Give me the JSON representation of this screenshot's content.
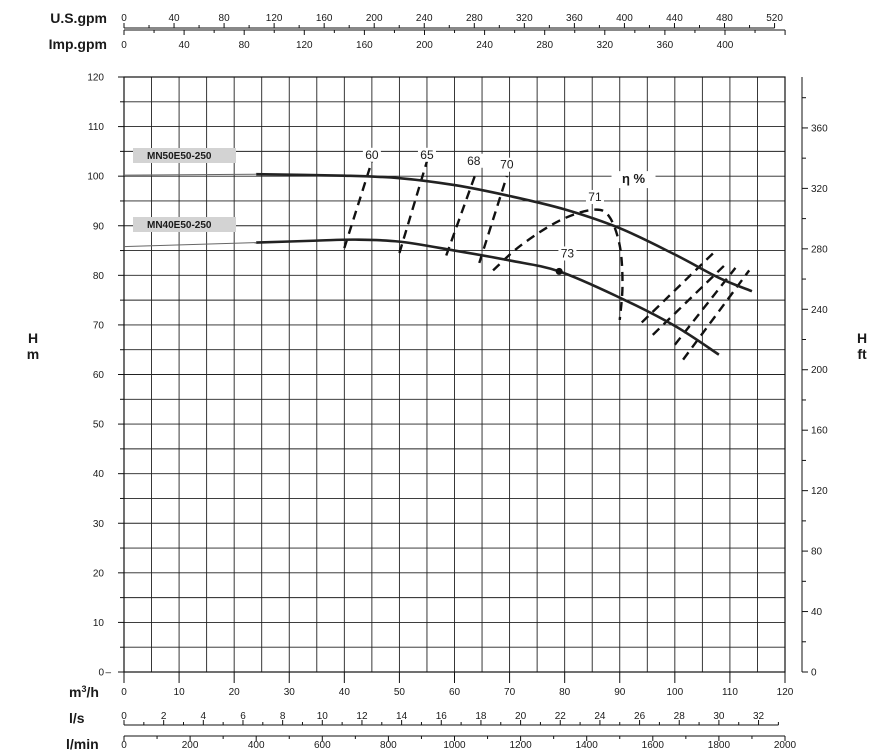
{
  "chart_data": {
    "type": "line",
    "units": {
      "usgpm": "U.S.gpm",
      "impgpm": "Imp.gpm",
      "h_left_top": "H",
      "h_left_bottom": "m",
      "h_right_top": "H",
      "h_right_bottom": "ft",
      "m3h": "m",
      "m3h_suffix": "/h",
      "ls": "l/s",
      "lmin": "l/min"
    },
    "efficiency_label": "η %",
    "xlim": [
      0,
      120
    ],
    "ylim": [
      0,
      120
    ],
    "grid": true,
    "axes": {
      "m3h_ticks": [
        "0",
        "10",
        "20",
        "30",
        "40",
        "50",
        "60",
        "70",
        "80",
        "90",
        "100",
        "110",
        "120"
      ],
      "h_m_ticks": [
        "0",
        "10",
        "20",
        "30",
        "40",
        "50",
        "60",
        "70",
        "80",
        "90",
        "100",
        "110",
        "120"
      ],
      "h_ft_ticks": [
        "0",
        "40",
        "80",
        "120",
        "160",
        "200",
        "240",
        "280",
        "320",
        "360"
      ],
      "usgpm_ticks": [
        "0",
        "40",
        "80",
        "120",
        "160",
        "200",
        "240",
        "280",
        "320",
        "360",
        "400",
        "440",
        "480",
        "520"
      ],
      "impgpm_ticks": [
        "0",
        "40",
        "80",
        "120",
        "160",
        "200",
        "240",
        "280",
        "320",
        "360",
        "400"
      ],
      "ls_ticks": [
        "0",
        "2",
        "4",
        "6",
        "8",
        "10",
        "12",
        "14",
        "16",
        "18",
        "20",
        "22",
        "24",
        "26",
        "28",
        "30",
        "32"
      ],
      "lmin_ticks": [
        "0",
        "200",
        "400",
        "600",
        "800",
        "1000",
        "1200",
        "1400",
        "1600",
        "1800",
        "2000"
      ]
    },
    "series": [
      {
        "name": "MN50E50-250",
        "x": [
          0,
          24,
          40,
          50,
          60,
          70,
          80,
          90,
          100,
          108,
          114
        ],
        "y": [
          100.2,
          100.4,
          100.1,
          99.6,
          98.2,
          96.0,
          93.3,
          89.5,
          84.2,
          79.5,
          76.8
        ]
      },
      {
        "name": "MN40E50-250",
        "x": [
          0,
          24,
          35,
          42,
          50,
          60,
          70,
          79,
          90,
          100,
          108
        ],
        "y": [
          85.8,
          86.6,
          87.0,
          87.2,
          86.8,
          85.0,
          83.0,
          80.8,
          75.5,
          69.8,
          64.0
        ]
      }
    ],
    "efficiency_curves": [
      {
        "label": "60",
        "x": [
          40,
          45
        ],
        "y": [
          85.5,
          103
        ]
      },
      {
        "label": "65",
        "x": [
          50,
          55
        ],
        "y": [
          84.5,
          103
        ]
      },
      {
        "label": "68",
        "x": [
          58.5,
          64
        ],
        "y": [
          84,
          101
        ]
      },
      {
        "label": "70",
        "x": [
          64.5,
          69.5
        ],
        "y": [
          82.5,
          100
        ]
      },
      {
        "label": "71",
        "x": [
          67,
          72,
          79,
          85,
          88,
          90,
          90.5,
          90
        ],
        "y": [
          81,
          86,
          91,
          93.2,
          92,
          86,
          78,
          71
        ]
      },
      {
        "label": "71",
        "x": [
          94,
          107
        ],
        "y": [
          70.5,
          84.5
        ]
      },
      {
        "label": "70",
        "x": [
          96,
          109
        ],
        "y": [
          68,
          82
        ]
      },
      {
        "label": "68",
        "x": [
          100,
          111
        ],
        "y": [
          66,
          81.5
        ]
      },
      {
        "label": "65",
        "x": [
          101.5,
          113.5
        ],
        "y": [
          63,
          81
        ]
      }
    ],
    "efficiency_labels": [
      {
        "text": "60",
        "x": 45,
        "y": 103.5
      },
      {
        "text": "65",
        "x": 55,
        "y": 103.5
      },
      {
        "text": "68",
        "x": 63.5,
        "y": 102.3
      },
      {
        "text": "70",
        "x": 69.5,
        "y": 101.5
      },
      {
        "text": "71",
        "x": 85.5,
        "y": 95
      },
      {
        "text": "73",
        "x": 80.5,
        "y": 83.6
      }
    ],
    "best_point": {
      "x": 79,
      "y": 80.8
    },
    "eta_position": {
      "x": 92.5,
      "y": 98.6
    }
  }
}
